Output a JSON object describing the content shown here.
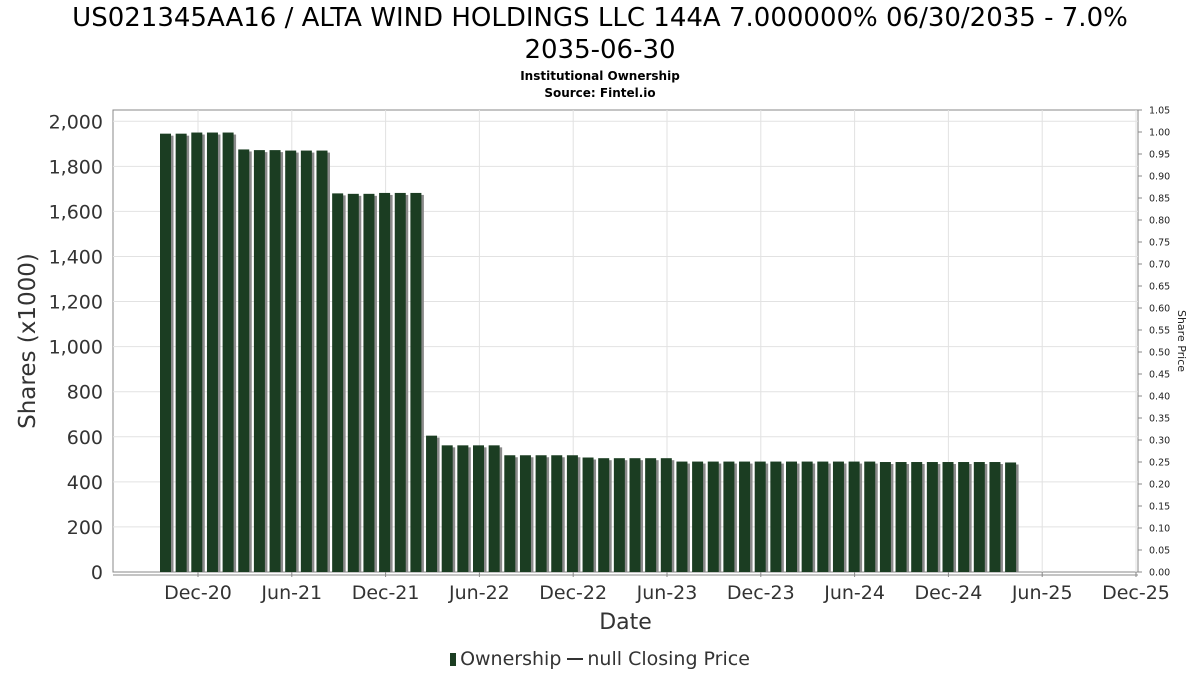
{
  "page": {
    "title_line1": "US021345AA16 / ALTA WIND HOLDINGS LLC 144A 7.000000% 06/30/2035 - 7.0%",
    "title_line2": "2035-06-30",
    "subtitle": "Institutional Ownership",
    "source": "Source: Fintel.io"
  },
  "colors": {
    "bar": "#1b3d22",
    "bar_shadow": "#8a8a8a",
    "grid": "#e2e2e2"
  },
  "chart_data": {
    "type": "bar",
    "title": "US021345AA16 / ALTA WIND HOLDINGS LLC 144A 7.000000% 06/30/2035 - 7.0% 2035-06-30",
    "subtitle": "Institutional Ownership",
    "xlabel": "Date",
    "ylabel": "Shares (x1000)",
    "y2label": "Share Price",
    "ylim": [
      0,
      2050
    ],
    "y2lim": [
      0,
      1.05
    ],
    "yticks": [
      "0",
      "200",
      "400",
      "600",
      "800",
      "1,000",
      "1,200",
      "1,400",
      "1,600",
      "1,800",
      "2,000"
    ],
    "y2ticks": [
      "0.00",
      "0.05",
      "0.10",
      "0.15",
      "0.20",
      "0.25",
      "0.30",
      "0.35",
      "0.40",
      "0.45",
      "0.50",
      "0.55",
      "0.60",
      "0.65",
      "0.70",
      "0.75",
      "0.80",
      "0.85",
      "0.90",
      "0.95",
      "1.00",
      "1.05"
    ],
    "xticks": [
      "Dec-20",
      "Jun-21",
      "Dec-21",
      "Jun-22",
      "Dec-22",
      "Jun-23",
      "Dec-23",
      "Jun-24",
      "Dec-24",
      "Jun-25",
      "Dec-25"
    ],
    "grid": true,
    "legend_position": "bottom",
    "series": [
      {
        "name": "Ownership",
        "values": [
          1945,
          1945,
          1950,
          1950,
          1950,
          1875,
          1872,
          1872,
          1870,
          1870,
          1870,
          1680,
          1678,
          1678,
          1682,
          1682,
          1682,
          605,
          562,
          562,
          562,
          562,
          518,
          518,
          518,
          518,
          518,
          508,
          505,
          505,
          505,
          505,
          505,
          490,
          490,
          490,
          490,
          490,
          490,
          490,
          490,
          490,
          490,
          490,
          490,
          490,
          488,
          488,
          488,
          488,
          488,
          488,
          488,
          488,
          486
        ]
      },
      {
        "name": "null Closing Price",
        "values": []
      }
    ]
  }
}
